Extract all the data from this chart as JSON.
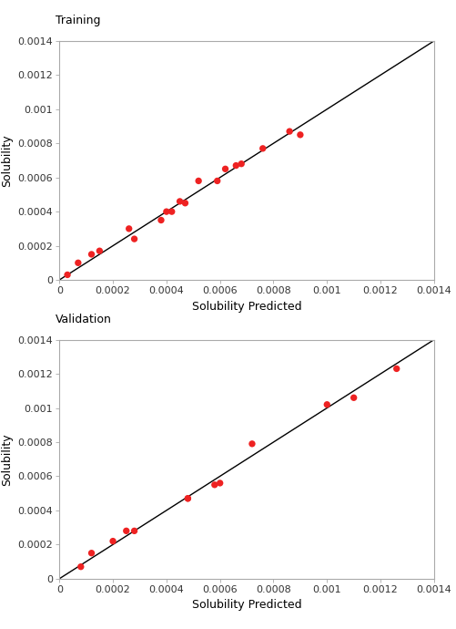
{
  "training_label": "Training",
  "validation_label": "Validation",
  "xlabel": "Solubility Predicted",
  "ylabel": "Solubility",
  "xlim": [
    0,
    0.0014
  ],
  "ylim": [
    0,
    0.0014
  ],
  "xticks": [
    0,
    0.0002,
    0.0004,
    0.0006,
    0.0008,
    0.001,
    0.0012,
    0.0014
  ],
  "yticks": [
    0,
    0.0002,
    0.0004,
    0.0006,
    0.0008,
    0.001,
    0.0012,
    0.0014
  ],
  "training_x": [
    3e-05,
    7e-05,
    0.00012,
    0.00015,
    0.00026,
    0.00028,
    0.00038,
    0.0004,
    0.00042,
    0.00045,
    0.00047,
    0.00052,
    0.00059,
    0.00062,
    0.00066,
    0.00068,
    0.00076,
    0.00086,
    0.0009
  ],
  "training_y": [
    3e-05,
    0.0001,
    0.00015,
    0.00017,
    0.0003,
    0.00024,
    0.00035,
    0.0004,
    0.0004,
    0.00046,
    0.00045,
    0.00058,
    0.00058,
    0.00065,
    0.00067,
    0.00068,
    0.00077,
    0.00087,
    0.00085
  ],
  "validation_x": [
    8e-05,
    0.00012,
    0.0002,
    0.00025,
    0.00028,
    0.00048,
    0.00048,
    0.00058,
    0.0006,
    0.00072,
    0.001,
    0.0011,
    0.00126
  ],
  "validation_y": [
    7e-05,
    0.00015,
    0.00022,
    0.00028,
    0.00028,
    0.00047,
    0.00047,
    0.00055,
    0.00056,
    0.00079,
    0.00102,
    0.00106,
    0.00123
  ],
  "dot_color": "#ee2222",
  "line_color": "#000000",
  "dot_size": 28,
  "background_color": "#ffffff",
  "label_fontsize": 9,
  "tick_fontsize": 8,
  "title_fontsize": 9,
  "spine_color": "#aaaaaa",
  "tick_color": "#aaaaaa"
}
